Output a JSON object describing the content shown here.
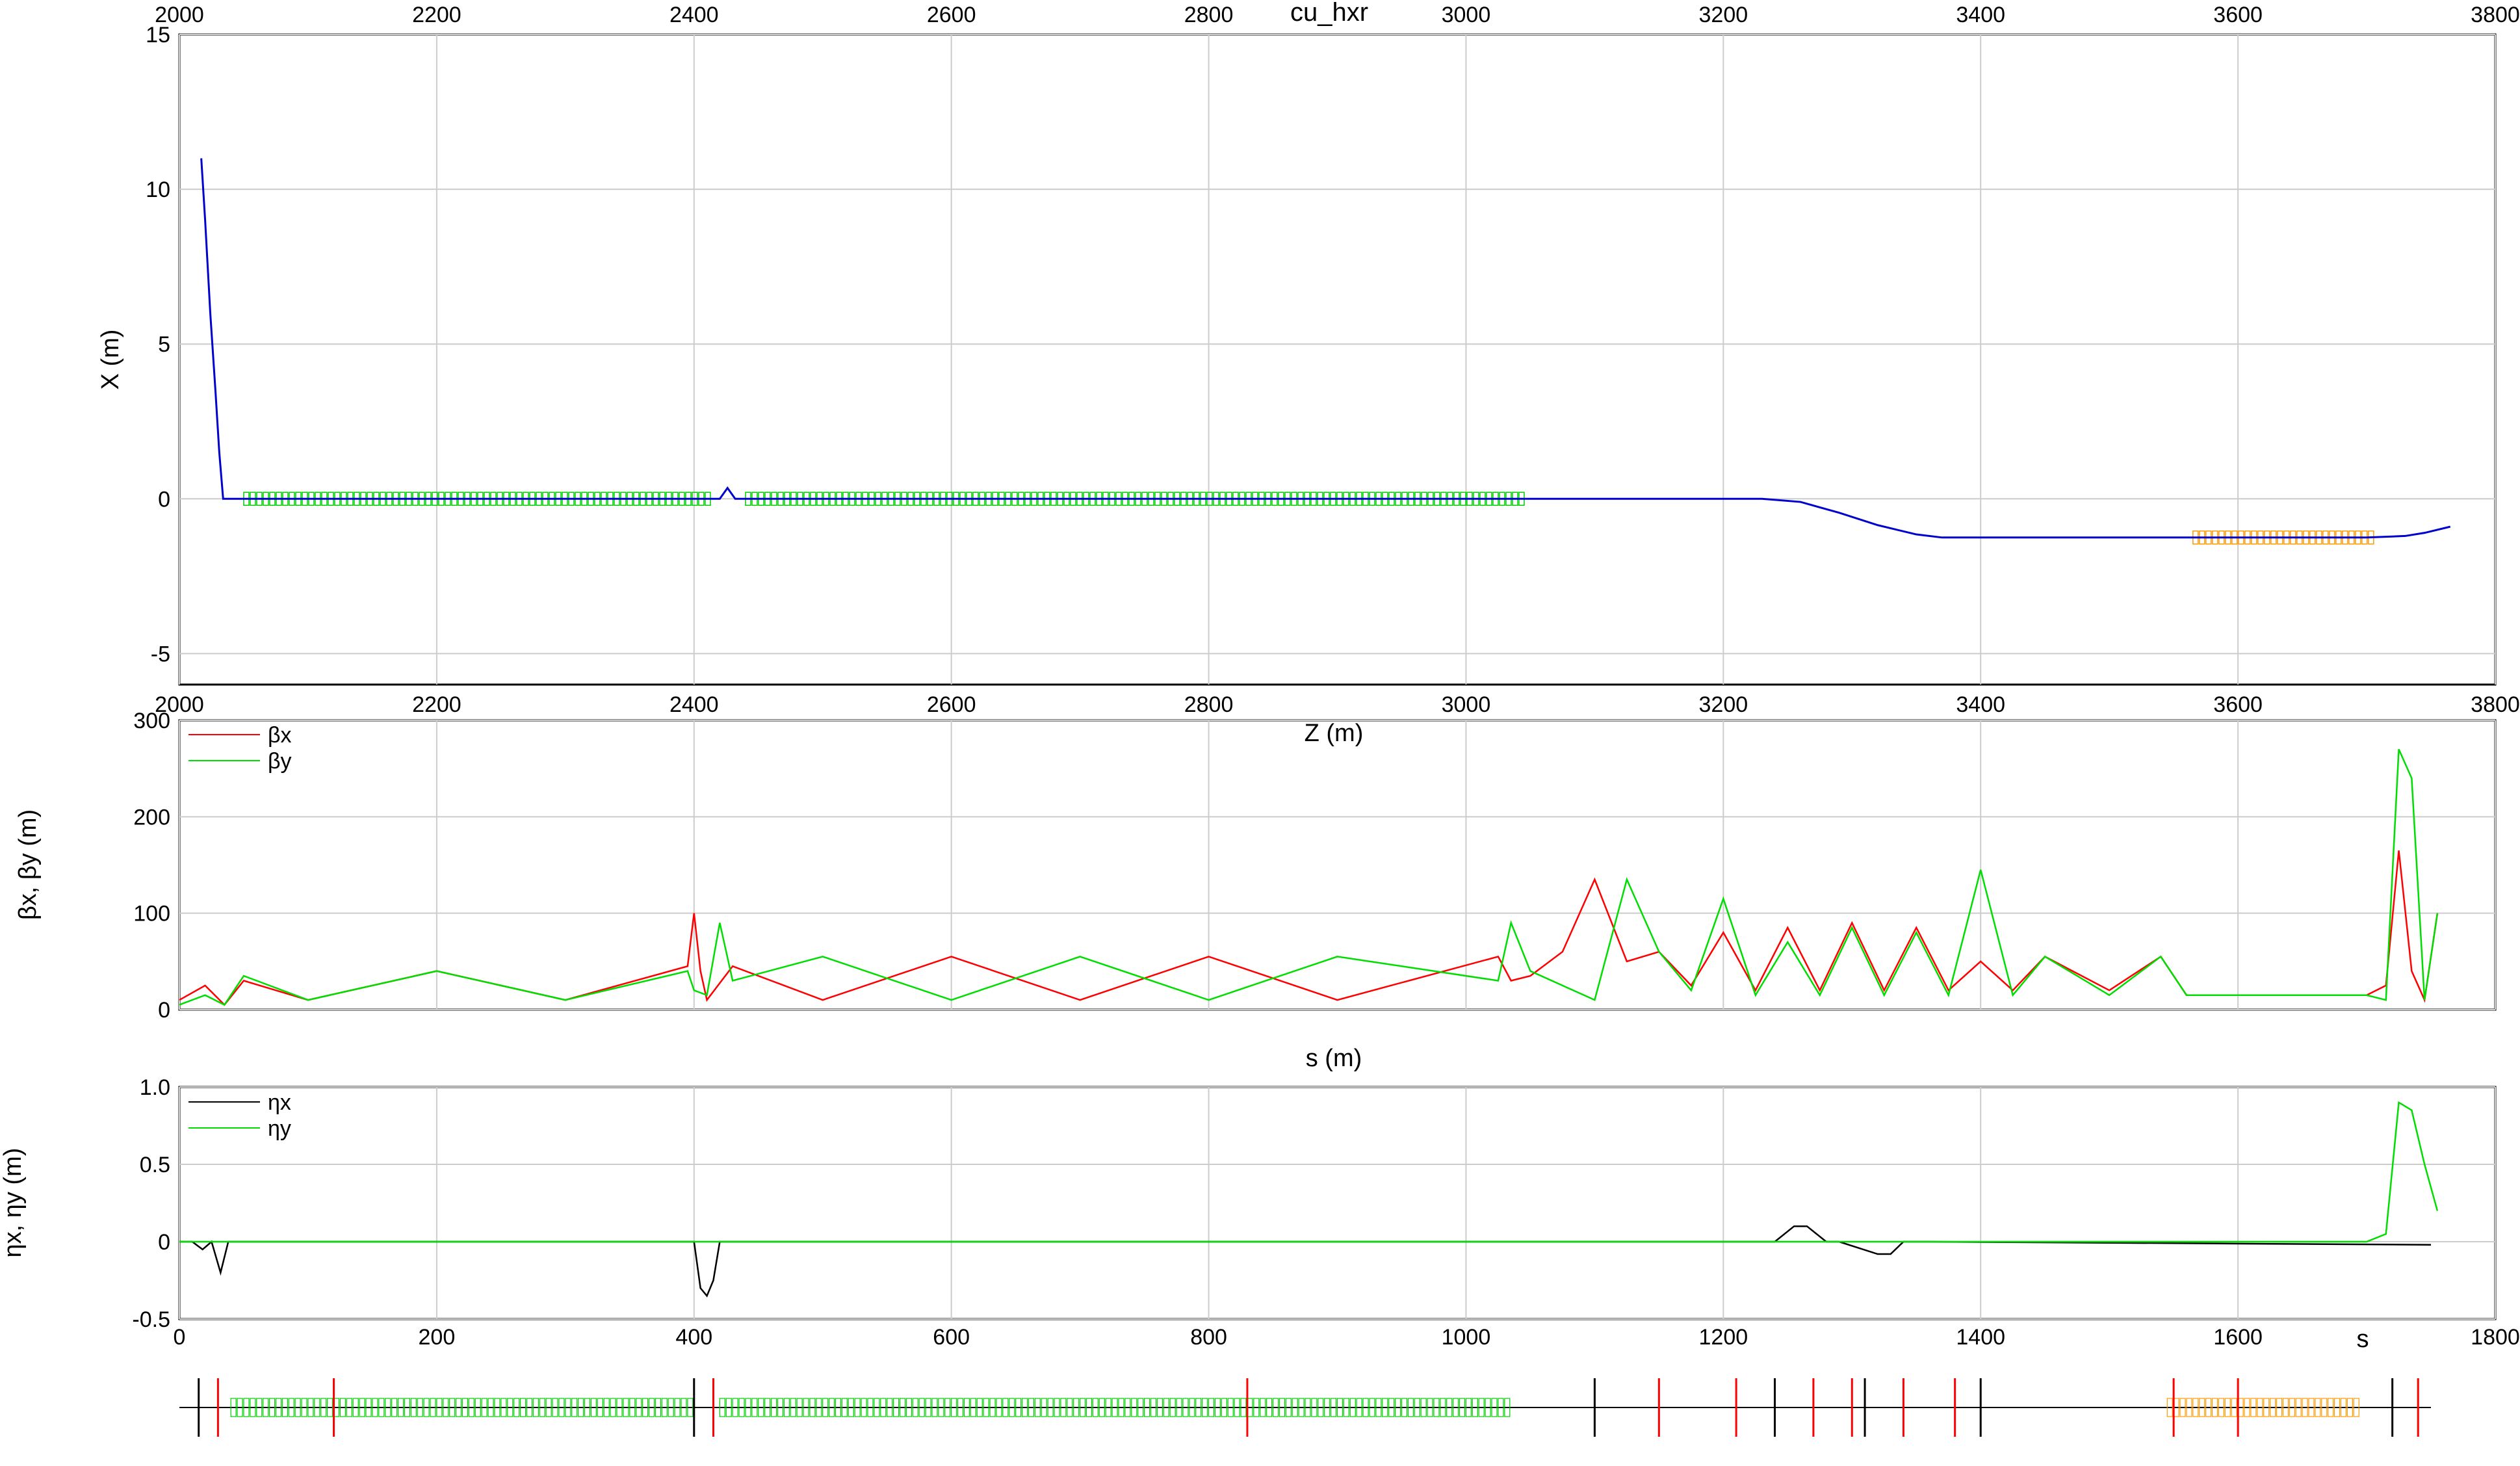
{
  "figure": {
    "title": "cu_hxr",
    "colors": {
      "beta_x": "#ff0000",
      "beta_y": "#00dd00",
      "eta_x": "#000000",
      "eta_y": "#00dd00",
      "dipole": "#0000cc",
      "quad": "#ff0000",
      "undulator": "#ff9900",
      "rf": "#00cc00"
    }
  },
  "chart_data": [
    {
      "id": "layout",
      "type": "line",
      "title": "cu_hxr",
      "xlabel": "Z (m)",
      "ylabel": "X (m)",
      "xlim": [
        2000,
        3800
      ],
      "ylim": [
        -6,
        15
      ],
      "xticks": [
        2000,
        2200,
        2400,
        2600,
        2800,
        3000,
        3200,
        3400,
        3600,
        3800
      ],
      "yticks": [
        -5,
        0,
        5,
        10,
        15
      ],
      "grid": true,
      "series": [
        {
          "x": [
            2017,
            2020,
            2024,
            2028,
            2031,
            2034,
            2040,
            2420,
            2426,
            2432,
            2440,
            3230,
            3260,
            3290,
            3320,
            3350,
            3370,
            3700,
            3730,
            3745,
            3765
          ],
          "y": [
            11.0,
            9.0,
            6.0,
            3.5,
            1.5,
            0.0,
            0.0,
            0.0,
            0.35,
            0.0,
            0.0,
            0.0,
            -0.1,
            -0.45,
            -0.85,
            -1.15,
            -1.25,
            -1.25,
            -1.2,
            -1.1,
            -0.9
          ]
        }
      ],
      "element_bands": [
        {
          "kind": "rf",
          "z_start": 2050,
          "z_end": 2410
        },
        {
          "kind": "rf",
          "z_start": 2440,
          "z_end": 3045
        },
        {
          "kind": "undulator",
          "z_start": 3565,
          "z_end": 3705
        }
      ]
    },
    {
      "id": "beta",
      "type": "line",
      "xlabel": "s (m)",
      "ylabel": "βx, βy (m)",
      "xlim": [
        0,
        1800
      ],
      "ylim": [
        0,
        300
      ],
      "yticks": [
        0,
        100,
        200,
        300
      ],
      "grid": true,
      "legend": "top-left",
      "series": [
        {
          "name": "βx",
          "x": [
            0,
            20,
            35,
            50,
            100,
            200,
            300,
            395,
            400,
            405,
            410,
            430,
            500,
            600,
            700,
            800,
            900,
            1025,
            1035,
            1050,
            1075,
            1100,
            1125,
            1150,
            1175,
            1200,
            1225,
            1250,
            1275,
            1300,
            1325,
            1350,
            1375,
            1400,
            1425,
            1450,
            1500,
            1540,
            1560,
            1600,
            1700,
            1715,
            1725,
            1735,
            1745,
            1755
          ],
          "y": [
            10,
            25,
            5,
            30,
            10,
            40,
            10,
            45,
            100,
            40,
            10,
            45,
            10,
            55,
            10,
            55,
            10,
            55,
            30,
            35,
            60,
            135,
            50,
            60,
            25,
            80,
            20,
            85,
            20,
            90,
            20,
            85,
            20,
            50,
            20,
            55,
            20,
            55,
            15,
            15,
            15,
            25,
            165,
            40,
            10,
            100
          ]
        },
        {
          "name": "βy",
          "x": [
            0,
            20,
            35,
            50,
            100,
            200,
            300,
            395,
            400,
            410,
            420,
            430,
            500,
            600,
            700,
            800,
            900,
            1025,
            1035,
            1050,
            1075,
            1100,
            1125,
            1150,
            1175,
            1200,
            1225,
            1250,
            1275,
            1300,
            1325,
            1350,
            1375,
            1400,
            1425,
            1450,
            1500,
            1540,
            1560,
            1600,
            1700,
            1715,
            1725,
            1735,
            1745,
            1755
          ],
          "y": [
            5,
            15,
            5,
            35,
            10,
            40,
            10,
            40,
            20,
            15,
            90,
            30,
            55,
            10,
            55,
            10,
            55,
            30,
            90,
            40,
            25,
            10,
            135,
            60,
            20,
            115,
            15,
            70,
            15,
            85,
            15,
            80,
            15,
            145,
            15,
            55,
            15,
            55,
            15,
            15,
            15,
            10,
            270,
            240,
            10,
            100
          ]
        }
      ]
    },
    {
      "id": "eta",
      "type": "line",
      "xlabel": "s",
      "ylabel": "ηx, ηy (m)",
      "xlim": [
        0,
        1800
      ],
      "ylim": [
        -0.5,
        1.0
      ],
      "xticks": [
        0,
        200,
        400,
        600,
        800,
        1000,
        1200,
        1400,
        1600,
        1800
      ],
      "yticks": [
        -0.5,
        0,
        0.5,
        1.0
      ],
      "grid": true,
      "legend": "top-left",
      "series": [
        {
          "name": "ηx",
          "x": [
            0,
            10,
            18,
            25,
            32,
            38,
            400,
            405,
            410,
            415,
            420,
            1200,
            1240,
            1255,
            1265,
            1280,
            1290,
            1320,
            1330,
            1340,
            1360,
            1750
          ],
          "y": [
            0,
            0,
            -0.05,
            0,
            -0.2,
            0,
            0,
            -0.3,
            -0.35,
            -0.25,
            0,
            0,
            0,
            0.1,
            0.1,
            0,
            0,
            -0.08,
            -0.08,
            0,
            0,
            -0.02
          ]
        },
        {
          "name": "ηy",
          "x": [
            0,
            1700,
            1715,
            1725,
            1735,
            1745,
            1755
          ],
          "y": [
            0,
            0,
            0.05,
            0.9,
            0.85,
            0.5,
            0.2
          ]
        }
      ]
    }
  ],
  "ticks": {
    "top_z": [
      "2000",
      "2200",
      "2400",
      "2600",
      "2800",
      "3000",
      "3200",
      "3400",
      "3600",
      "3800"
    ],
    "bottom_z": [
      "2000",
      "2200",
      "2400",
      "2600",
      "2800",
      "3000",
      "3200",
      "3400",
      "3600",
      "3800"
    ],
    "layout_y": [
      "15",
      "10",
      "5",
      "0",
      "-5"
    ],
    "beta_y": [
      "300",
      "200",
      "100",
      "0"
    ],
    "eta_y": [
      "1.0",
      "0.5",
      "0",
      "-0.5"
    ],
    "s": [
      "0",
      "200",
      "400",
      "600",
      "800",
      "1000",
      "1200",
      "1400",
      "1600",
      "1800"
    ]
  }
}
